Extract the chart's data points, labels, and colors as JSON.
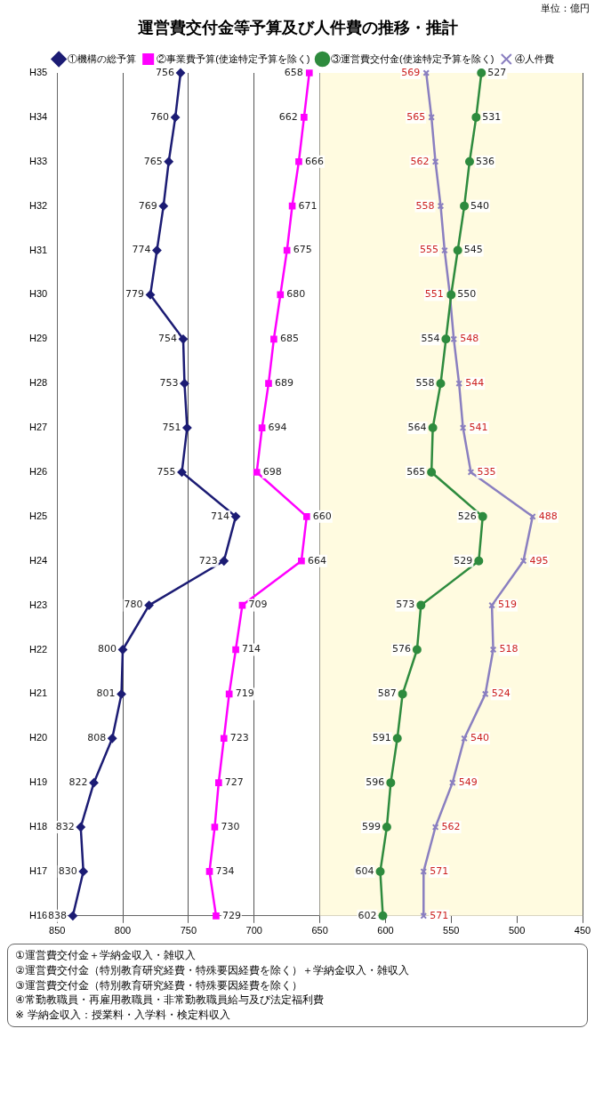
{
  "chart_data": {
    "type": "line",
    "orientation": "horizontal",
    "title": "運営費交付金等予算及び人件費の推移・推計",
    "categories": [
      "H35",
      "H34",
      "H33",
      "H32",
      "H31",
      "H30",
      "H29",
      "H28",
      "H27",
      "H26",
      "H25",
      "H24",
      "H23",
      "H22",
      "H21",
      "H20",
      "H19",
      "H18",
      "H17",
      "H16"
    ],
    "series": [
      {
        "name": "①機構の総予算",
        "color": "#1c1c74",
        "marker": "diamond",
        "values": [
          756,
          760,
          765,
          769,
          774,
          779,
          754,
          753,
          751,
          755,
          714,
          723,
          780,
          800,
          801,
          808,
          822,
          832,
          830,
          838
        ]
      },
      {
        "name": "②事業費予算(使途特定予算を除く)",
        "color": "#ff00ff",
        "marker": "square",
        "values": [
          658,
          662,
          666,
          671,
          675,
          680,
          685,
          689,
          694,
          698,
          660,
          664,
          709,
          714,
          719,
          723,
          727,
          730,
          734,
          729
        ]
      },
      {
        "name": "③運営費交付金(使途特定予算を除く)",
        "color": "#2e8b3e",
        "marker": "circle",
        "values": [
          527,
          531,
          536,
          540,
          545,
          550,
          554,
          558,
          564,
          565,
          526,
          529,
          573,
          576,
          587,
          591,
          596,
          599,
          604,
          602
        ]
      },
      {
        "name": "④人件費",
        "color": "#8a7fc0",
        "marker": "cross",
        "values": [
          569,
          565,
          562,
          558,
          555,
          551,
          548,
          544,
          541,
          535,
          488,
          495,
          519,
          518,
          524,
          540,
          549,
          562,
          571,
          571
        ]
      }
    ],
    "xlim": [
      850,
      450
    ],
    "xticks": [
      850,
      800,
      750,
      700,
      650,
      600,
      550,
      500,
      450
    ],
    "grid": "x",
    "legend": "top",
    "data_labels": true,
    "bands": [
      {
        "axis": "x",
        "from": 450,
        "to": 650,
        "color": "#fffbe0"
      }
    ],
    "annotations": [
      "単位：億円",
      "①運営費交付金＋学納金収入・雑収入",
      "②運営費交付金（特別教育研究経費・特殊要因経費を除く）＋学納金収入・雑収入",
      "③運営費交付金（特別教育研究経費・特殊要因経費を除く）",
      "④常勤教職員・再雇用教職員・非常勤教職員給与及び法定福利費",
      "※ 学納金収入：授業料・入学料・検定料収入"
    ]
  }
}
